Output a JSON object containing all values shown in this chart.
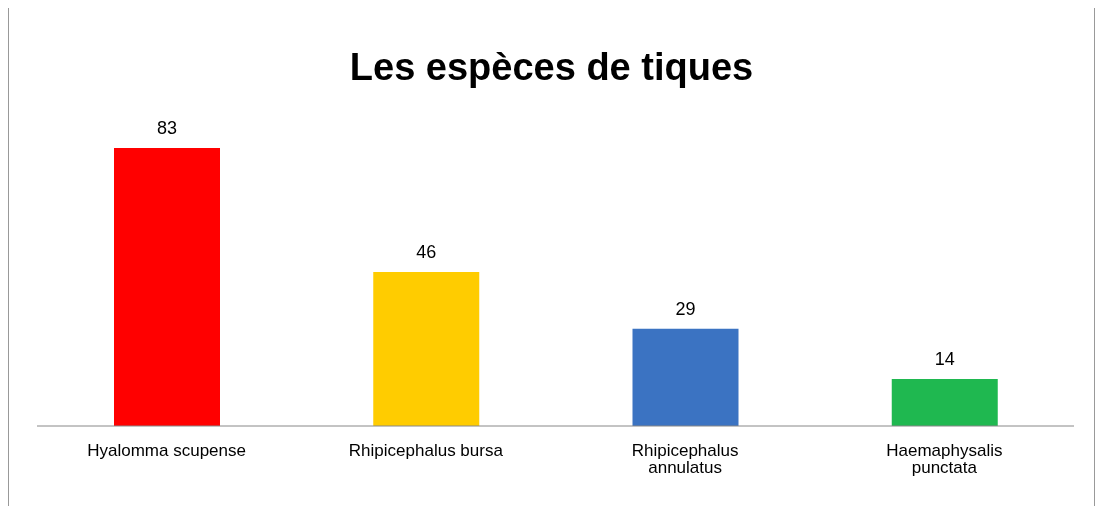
{
  "chart_data": {
    "type": "bar",
    "title": "Les espèces de tiques",
    "categories": [
      "Hyalomma scupense",
      "Rhipicephalus bursa",
      "Rhipicephalus annulatus",
      "Haemaphysalis punctata"
    ],
    "values": [
      83,
      46,
      29,
      14
    ],
    "colors": [
      "#ff0000",
      "#ffcc00",
      "#3b73c2",
      "#1fb850"
    ],
    "data_labels": true
  }
}
